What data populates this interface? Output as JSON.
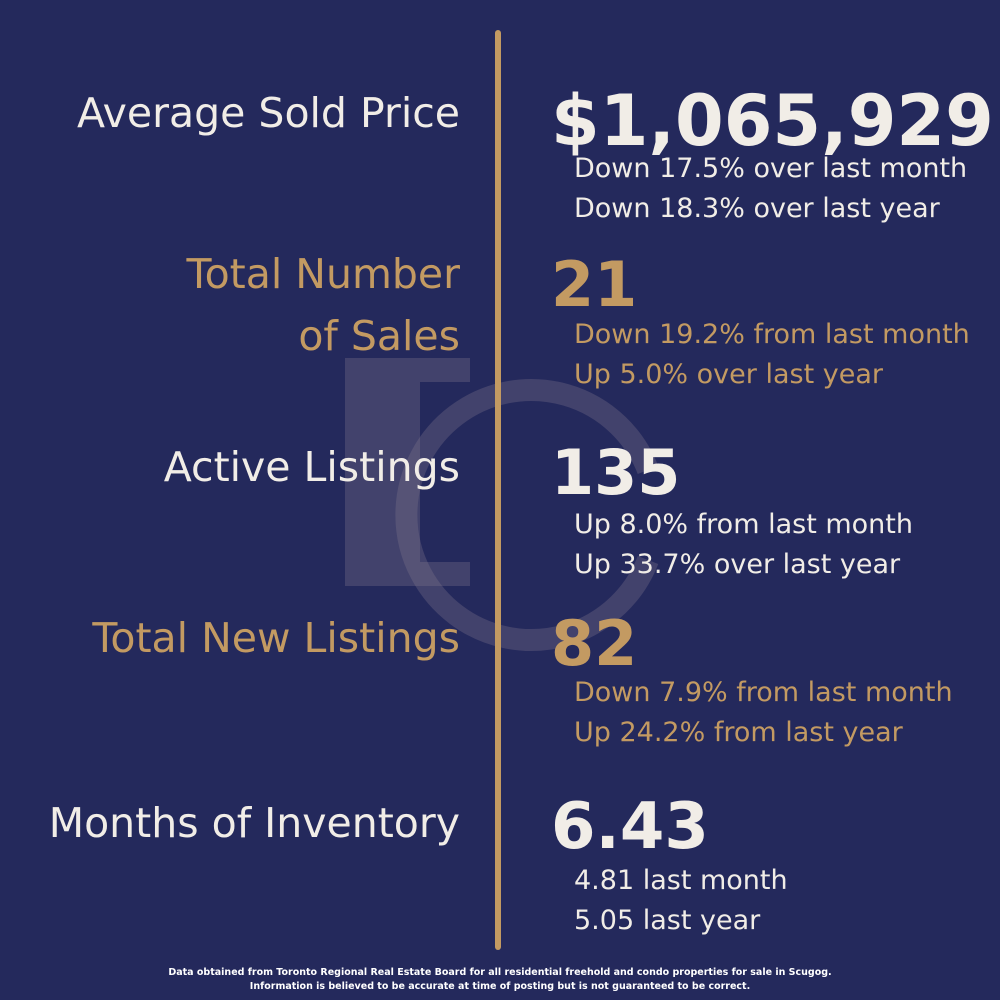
{
  "colors": {
    "background": "#24295c",
    "gold": "#c39a62",
    "text_light": "#f1ede7"
  },
  "stats": [
    {
      "label_lines": [
        "Average Sold Price"
      ],
      "value": "$1,065,929",
      "sub": [
        "Down 17.5% over last month",
        "Down 18.3% over last year"
      ]
    },
    {
      "label_lines": [
        "Total Number",
        "of Sales"
      ],
      "value": "21",
      "sub": [
        "Down 19.2% from last month",
        "Up 5.0% over last year"
      ]
    },
    {
      "label_lines": [
        "Active Listings"
      ],
      "value": "135",
      "sub": [
        "Up 8.0% from last month",
        "Up 33.7% over last year"
      ]
    },
    {
      "label_lines": [
        "Total New Listings"
      ],
      "value": "82",
      "sub": [
        "Down 7.9% from last month",
        "Up 24.2% from last year"
      ]
    },
    {
      "label_lines": [
        "Months of Inventory"
      ],
      "value": "6.43",
      "sub": [
        "4.81 last month",
        "5.05 last year"
      ]
    }
  ],
  "footer": {
    "line1": "Data obtained from Toronto Regional Real Estate Board for all residential freehold and condo properties for sale in Scugog.",
    "line2": "Information is believed to be accurate at time of posting but is not guaranteed to be correct."
  }
}
